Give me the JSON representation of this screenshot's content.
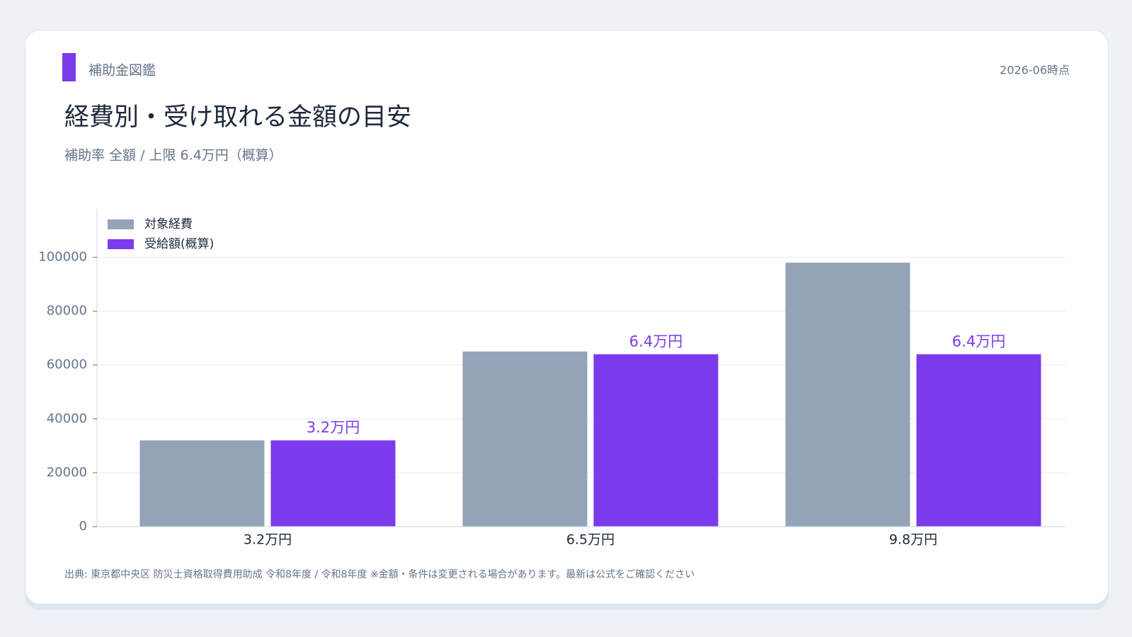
{
  "header": {
    "brand": "補助金図鑑",
    "as_of": "2026-06時点"
  },
  "chart_data": {
    "type": "bar",
    "title": "経費別・受け取れる金額の目安",
    "subtitle": "補助率 全額 / 上限 6.4万円（概算）",
    "categories": [
      "3.2万円",
      "6.5万円",
      "9.8万円"
    ],
    "series": [
      {
        "name": "対象経費",
        "color": "#94a3b8",
        "values": [
          32000,
          65000,
          98000
        ]
      },
      {
        "name": "受給額(概算)",
        "color": "#7c3aed",
        "values": [
          32000,
          64000,
          64000
        ],
        "value_labels": [
          "3.2万円",
          "6.4万円",
          "6.4万円"
        ]
      }
    ],
    "ylim": [
      0,
      118000
    ],
    "yticks": [
      0,
      20000,
      40000,
      60000,
      80000,
      100000
    ],
    "grid": true,
    "legend": "top-left"
  },
  "footer": {
    "source": "出典: 東京都中央区 防災士資格取得費用助成 令和8年度 / 令和8年度 ※金額・条件は変更される場合があります。最新は公式をご確認ください"
  }
}
